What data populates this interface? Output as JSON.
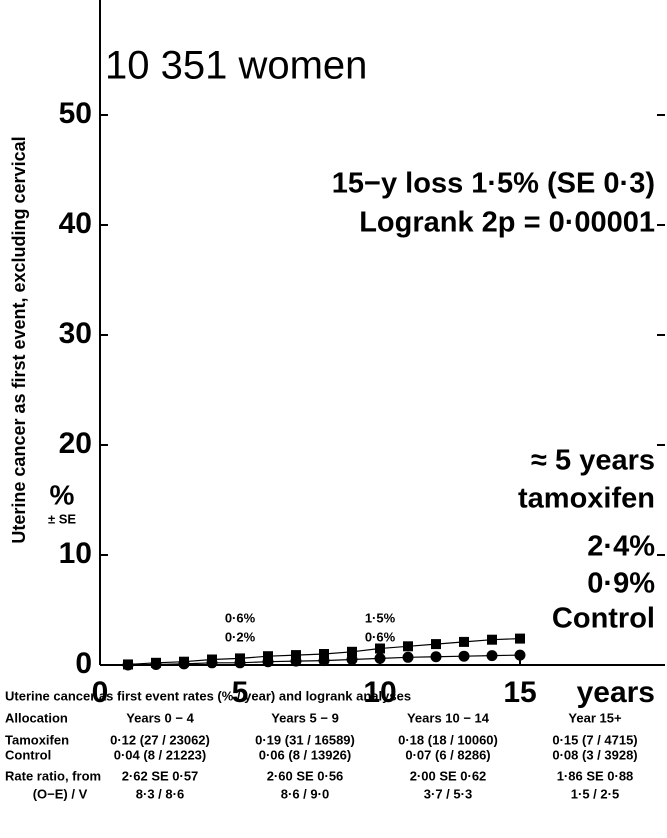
{
  "chart_data": {
    "type": "line",
    "title": "10 351 women",
    "ylabel": "Uterine cancer as first event, excluding cervical",
    "yunit": "%",
    "yunit_sub": "± SE",
    "xlabel": "years",
    "stats": [
      "15−y loss 1·5% (SE 0·3)",
      "Logrank 2p = 0·00001"
    ],
    "xlim": [
      0,
      20
    ],
    "xticks": [
      0,
      5,
      10,
      15
    ],
    "ylim": [
      0,
      60
    ],
    "yticks": [
      0,
      10,
      20,
      30,
      40,
      50
    ],
    "x": [
      1,
      2,
      3,
      4,
      5,
      6,
      7,
      8,
      9,
      10,
      11,
      12,
      13,
      14,
      15
    ],
    "series": [
      {
        "name": "tamoxifen",
        "color": "#000000",
        "marker": "square",
        "values": [
          0.05,
          0.2,
          0.3,
          0.5,
          0.6,
          0.8,
          0.9,
          1.0,
          1.2,
          1.5,
          1.7,
          1.9,
          2.1,
          2.3,
          2.4
        ]
      },
      {
        "name": "Control",
        "color": "#000000",
        "marker": "circle",
        "values": [
          0.0,
          0.05,
          0.1,
          0.2,
          0.2,
          0.3,
          0.35,
          0.4,
          0.5,
          0.6,
          0.7,
          0.75,
          0.8,
          0.85,
          0.9
        ]
      }
    ],
    "series_prefix": "≈ 5 years",
    "point_labels": [
      {
        "x": 5,
        "labels": [
          "0·6%",
          "0·2%"
        ]
      },
      {
        "x": 10,
        "labels": [
          "1·5%",
          "0·6%"
        ]
      }
    ],
    "end_labels": [
      "2·4%",
      "0·9%"
    ],
    "table": {
      "title": "Uterine cancer as first event rates (% / year) and logrank analyses",
      "header": [
        "Allocation",
        "Years 0 − 4",
        "Years 5 − 9",
        "Years 10 − 14",
        "Year 15+"
      ],
      "rows": [
        [
          "Tamoxifen",
          "0·12 (27 / 23062)",
          "0·19 (31 / 16589)",
          "0·18 (18 / 10060)",
          "0·15 (7 / 4715)"
        ],
        [
          "Control",
          "0·04 (8 / 21223)",
          "0·06 (8 / 13926)",
          "0·07 (6 / 8286)",
          "0·08 (3 / 3928)"
        ],
        [
          "Rate ratio, from",
          "2·62 SE 0·57",
          "2·60 SE 0·56",
          "2·00 SE 0·62",
          "1·86 SE 0·88"
        ],
        [
          "(O−E) / V",
          "8·3 / 8·6",
          "8·6 / 9·0",
          "3·7 / 5·3",
          "1·5 / 2·5"
        ]
      ]
    }
  }
}
